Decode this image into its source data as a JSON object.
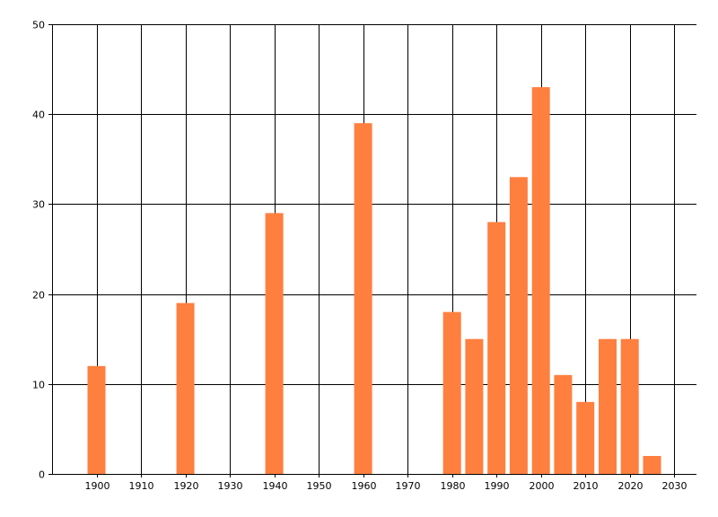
{
  "chart_data": {
    "type": "bar",
    "x": [
      1900,
      1920,
      1940,
      1960,
      1980,
      1985,
      1990,
      1995,
      2000,
      2005,
      2010,
      2015,
      2020,
      2025
    ],
    "values": [
      12,
      19,
      29,
      39,
      18,
      15,
      28,
      33,
      43,
      11,
      8,
      15,
      15,
      2
    ],
    "title": "",
    "xlabel": "",
    "ylabel": "",
    "xlim": [
      1890,
      2035
    ],
    "ylim": [
      0,
      50
    ],
    "xticks": [
      1900,
      1910,
      1920,
      1930,
      1940,
      1950,
      1960,
      1970,
      1980,
      1990,
      2000,
      2010,
      2020,
      2030
    ],
    "yticks": [
      0,
      10,
      20,
      30,
      40,
      50
    ],
    "bar_color": "#ff7f3f",
    "grid": true,
    "legend": "none"
  }
}
